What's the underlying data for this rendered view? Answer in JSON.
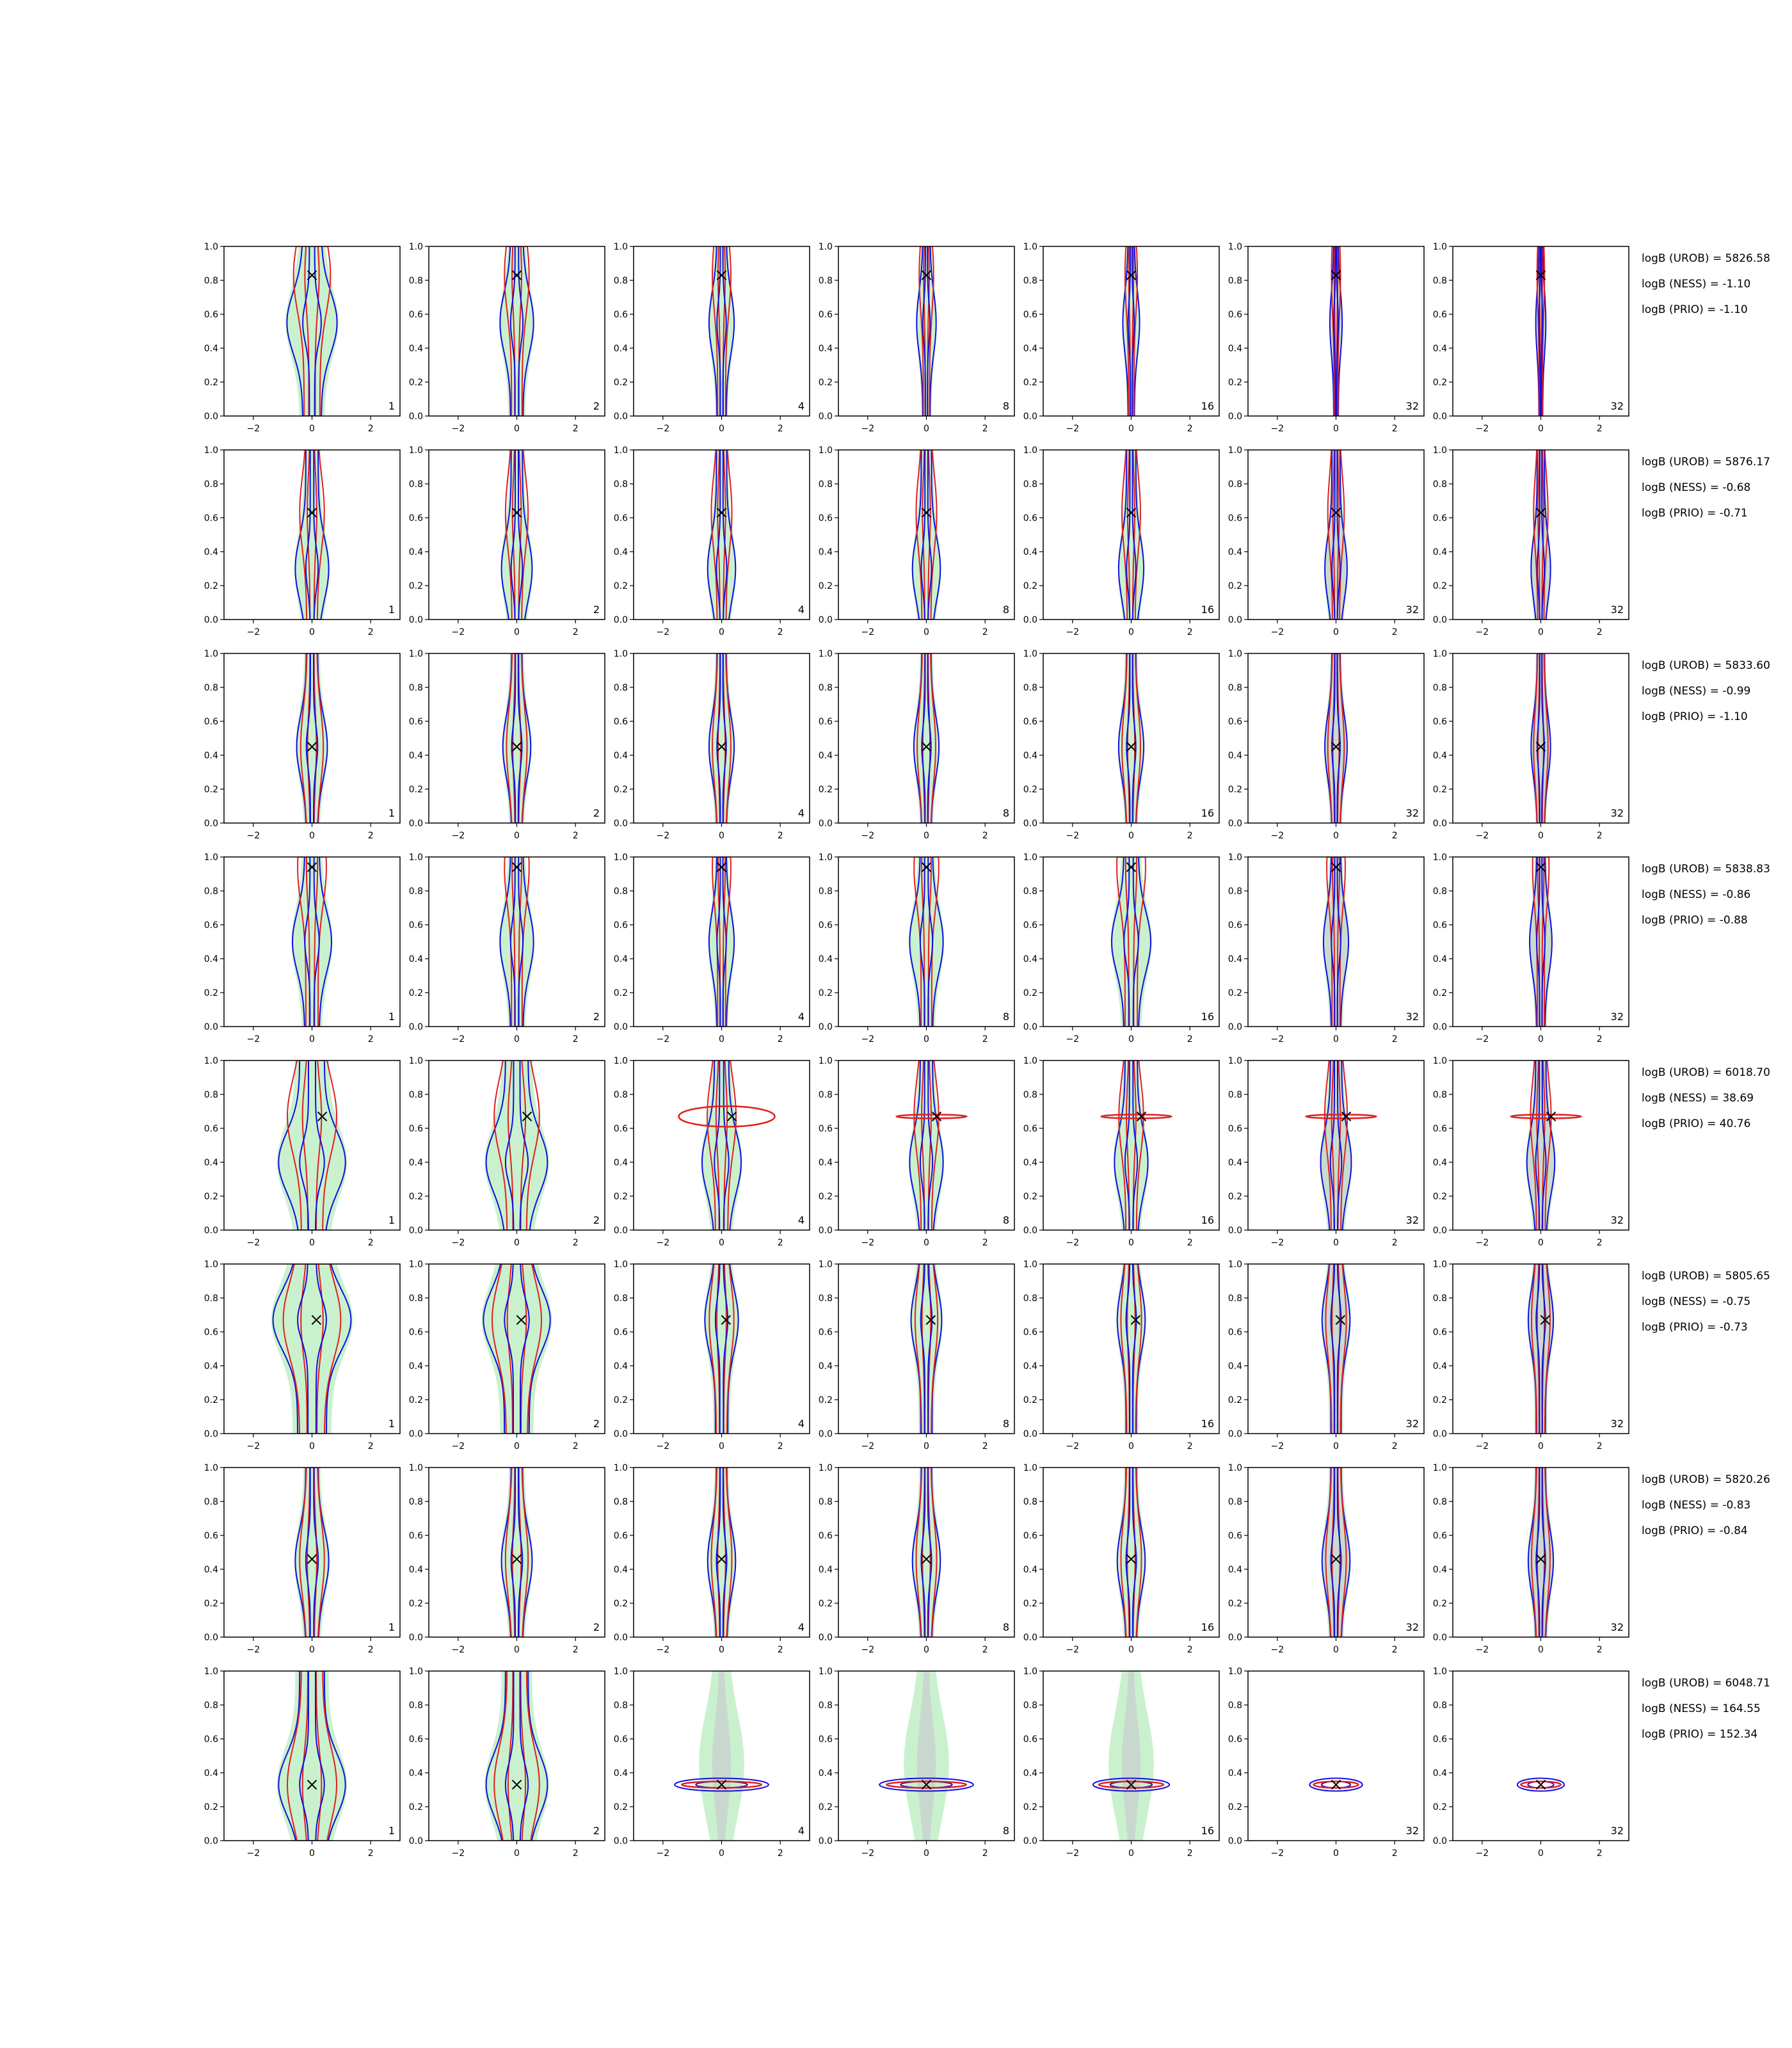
{
  "chart_data": {
    "type": "contour-grid",
    "rows": 8,
    "cols": 7,
    "xlim": [
      -3,
      3
    ],
    "ylim": [
      0,
      1
    ],
    "xticks": [
      -2,
      0,
      2
    ],
    "yticks": [
      0.0,
      0.2,
      0.4,
      0.6,
      0.8,
      1.0
    ],
    "xtick_labels": [
      "−2",
      "0",
      "2"
    ],
    "ytick_labels": [
      "0.0",
      "0.2",
      "0.4",
      "0.6",
      "0.8",
      "1.0"
    ],
    "corner_labels": [
      "1",
      "2",
      "4",
      "8",
      "16",
      "32",
      "32"
    ],
    "colors": {
      "green_fill": "#9ee6a6",
      "grey_fill": "#c8c8d0",
      "red": "#e02020",
      "blue": "#1010e0",
      "marker": "#000000"
    },
    "markers": [
      {
        "x": 0.0,
        "y": 0.83
      },
      {
        "x": 0.0,
        "y": 0.63
      },
      {
        "x": 0.0,
        "y": 0.45
      },
      {
        "x": 0.0,
        "y": 0.94
      },
      {
        "x": 0.35,
        "y": 0.67
      },
      {
        "x": 0.15,
        "y": 0.67
      },
      {
        "x": 0.0,
        "y": 0.46
      },
      {
        "x": 0.0,
        "y": 0.33
      }
    ],
    "row_profiles": [
      {
        "spread": [
          0.9,
          0.6,
          0.45,
          0.35,
          0.3,
          0.22,
          0.18
        ],
        "center": 0.55,
        "type": "vertical"
      },
      {
        "spread": [
          0.6,
          0.55,
          0.5,
          0.5,
          0.45,
          0.4,
          0.35
        ],
        "center": 0.3,
        "type": "vertical"
      },
      {
        "spread": [
          0.55,
          0.5,
          0.45,
          0.45,
          0.45,
          0.4,
          0.35
        ],
        "center": 0.45,
        "type": "vertical"
      },
      {
        "spread": [
          0.7,
          0.6,
          0.45,
          0.6,
          0.7,
          0.45,
          0.4
        ],
        "center": 0.5,
        "type": "vertical"
      },
      {
        "spread": [
          1.2,
          1.1,
          0.7,
          0.6,
          0.6,
          0.55,
          0.5
        ],
        "center": 0.4,
        "type": "mixed"
      },
      {
        "spread": [
          1.4,
          1.2,
          0.6,
          0.55,
          0.5,
          0.5,
          0.45
        ],
        "center": 0.67,
        "type": "vertical"
      },
      {
        "spread": [
          0.6,
          0.55,
          0.5,
          0.5,
          0.5,
          0.5,
          0.45
        ],
        "center": 0.45,
        "type": "vertical"
      },
      {
        "spread": [
          1.2,
          1.1,
          1.6,
          1.6,
          1.3,
          0.9,
          0.8
        ],
        "center": 0.33,
        "type": "horizontal"
      }
    ],
    "annotations": [
      [
        "logB (UROB) = 5826.58",
        "logB (NESS) = -1.10",
        "logB (PRIO) = -1.10"
      ],
      [
        "logB (UROB) = 5876.17",
        "logB (NESS) = -0.68",
        "logB (PRIO) = -0.71"
      ],
      [
        "logB (UROB) = 5833.60",
        "logB (NESS) = -0.99",
        "logB (PRIO) = -1.10"
      ],
      [
        "logB (UROB) = 5838.83",
        "logB (NESS) = -0.86",
        "logB (PRIO) = -0.88"
      ],
      [
        "logB (UROB) = 6018.70",
        "logB (NESS) = 38.69",
        "logB (PRIO) = 40.76"
      ],
      [
        "logB (UROB) = 5805.65",
        "logB (NESS) = -0.75",
        "logB (PRIO) = -0.73"
      ],
      [
        "logB (UROB) = 5820.26",
        "logB (NESS) = -0.83",
        "logB (PRIO) = -0.84"
      ],
      [
        "logB (UROB) = 6048.71",
        "logB (NESS) = 164.55",
        "logB (PRIO) = 152.34"
      ]
    ]
  }
}
